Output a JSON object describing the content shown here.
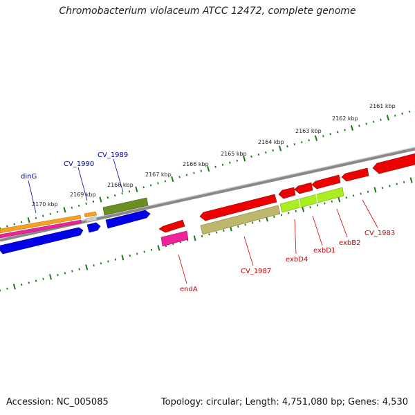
{
  "title": "Chromobacterium violaceum ATCC 12472, complete genome",
  "accession": "Accession: NC_005085",
  "summary": "Topology: circular; Length: 4,751,080 bp; Genes: 4,530",
  "scale_labels": [
    "2161 kbp",
    "2162 kbp",
    "2163 kbp",
    "2164 kbp",
    "2165 kbp",
    "2166 kbp",
    "2167 kbp",
    "2168 kbp",
    "2169 kbp",
    "2170 kbp"
  ],
  "gene_labels": {
    "dinG": "dinG",
    "cv1990": "CV_1990",
    "cv1989": "CV_1989",
    "endA": "endA",
    "cv1987": "CV_1987",
    "exbD4": "exbD4",
    "exbD1": "exbD1",
    "exbB2": "exbB2",
    "cv1983": "CV_1983"
  },
  "colors": {
    "forward_cds": "#0000e0",
    "reverse_cds": "#ee0000",
    "orange_feature": "#f5a020",
    "pink_feature": "#ee2299",
    "olive_feature": "#6b8e23",
    "khaki_feature": "#bdb76b",
    "lime_feature": "#aaee22",
    "backbone": "#7a7a7a",
    "ticks": "#1a7a1a",
    "label_forward": "#0000aa",
    "label_reverse": "#cc0000"
  }
}
